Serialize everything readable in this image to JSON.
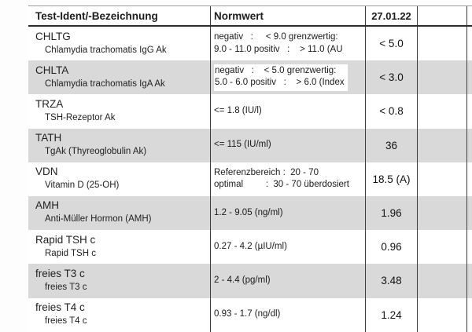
{
  "document": {
    "kind": "lab-report-table",
    "header": {
      "col1": "Test-Ident/-Bezeichnung",
      "col2": "Normwert",
      "col3": "27.01.22"
    },
    "rows": [
      {
        "ident": "CHLTG",
        "name": "Chlamydia trachomatis IgG Ak",
        "norm_lines": [
          "negativ   :     < 9.0 grenzwertig:",
          "9.0 - 11.0 positiv   :    > 11.0 (AU"
        ],
        "value": "< 5.0",
        "shaded": false,
        "norm_white_box": false
      },
      {
        "ident": "CHLTA",
        "name": "Chlamydia trachomatis IgA Ak",
        "norm_lines": [
          "negativ   :    < 5.0 grenzwertig:",
          "5.0 - 6.0 positiv   :    > 6.0 (Index"
        ],
        "value": "< 3.0",
        "shaded": true,
        "norm_white_box": true
      },
      {
        "ident": "TRZA",
        "name": "TSH-Rezeptor Ak",
        "norm_lines": [
          "<= 1.8 (IU/l)"
        ],
        "value": "< 0.8",
        "shaded": false,
        "norm_white_box": false
      },
      {
        "ident": "TATH",
        "name": "TgAk (Thyreoglobulin Ak)",
        "norm_lines": [
          "<= 115 (IU/ml)"
        ],
        "value": "36",
        "shaded": true,
        "norm_white_box": false
      },
      {
        "ident": "VDN",
        "name": "Vitamin D (25-OH)",
        "norm_lines": [
          "Referenzbereich :  20 - 70",
          "optimal         :  30 - 70 überdosiert"
        ],
        "value": "18.5 (A)",
        "shaded": false,
        "norm_white_box": false
      },
      {
        "ident": "AMH",
        "name": "Anti-Müller Hormon (AMH)",
        "norm_lines": [
          "1.2 - 9.05 (ng/ml)"
        ],
        "value": "1.96",
        "shaded": true,
        "norm_white_box": false
      },
      {
        "ident": "Rapid TSH c",
        "name": "Rapid TSH c",
        "norm_lines": [
          "0.27 - 4.2 (µIU/ml)"
        ],
        "value": "0.96",
        "shaded": false,
        "norm_white_box": false
      },
      {
        "ident": "freies T3 c",
        "name": "freies T3 c",
        "norm_lines": [
          "2 - 4.4 (pg/ml)"
        ],
        "value": "3.48",
        "shaded": true,
        "norm_white_box": false
      },
      {
        "ident": "freies T4 c",
        "name": "freies T4 c",
        "norm_lines": [
          "0.93 - 1.7 (ng/dl)"
        ],
        "value": "1.24",
        "shaded": false,
        "norm_white_box": false
      }
    ],
    "colors": {
      "stripe": "#d9d9d9",
      "rule": "#3d3d3d",
      "header_rule": "#2b2b2b",
      "text": "#1c1c1c"
    }
  }
}
